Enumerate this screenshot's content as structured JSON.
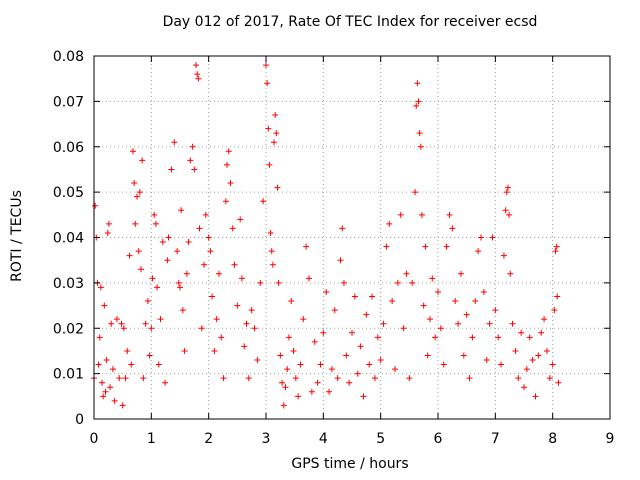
{
  "chart_data": {
    "type": "scatter",
    "title": "Day 012 of 2017, Rate Of TEC Index for receiver ecsd",
    "xlabel": "GPS time / hours",
    "ylabel": "ROTI / TECUs",
    "xlim": [
      0,
      9
    ],
    "ylim": [
      0,
      0.08
    ],
    "xticks": [
      "0",
      "1",
      "2",
      "3",
      "4",
      "5",
      "6",
      "7",
      "8",
      "9"
    ],
    "yticks": [
      "0",
      "0.01",
      "0.02",
      "0.03",
      "0.04",
      "0.05",
      "0.06",
      "0.07",
      "0.08"
    ],
    "grid": true,
    "marker": "plus",
    "color": "#ff0000",
    "series": [
      {
        "points": [
          [
            0.0,
            0.009
          ],
          [
            0.02,
            0.047
          ],
          [
            0.04,
            0.04
          ],
          [
            0.06,
            0.03
          ],
          [
            0.08,
            0.012
          ],
          [
            0.1,
            0.018
          ],
          [
            0.12,
            0.029
          ],
          [
            0.14,
            0.008
          ],
          [
            0.16,
            0.005
          ],
          [
            0.18,
            0.025
          ],
          [
            0.2,
            0.006
          ],
          [
            0.22,
            0.013
          ],
          [
            0.24,
            0.041
          ],
          [
            0.26,
            0.043
          ],
          [
            0.28,
            0.007
          ],
          [
            0.3,
            0.021
          ],
          [
            0.33,
            0.011
          ],
          [
            0.36,
            0.004
          ],
          [
            0.4,
            0.022
          ],
          [
            0.44,
            0.009
          ],
          [
            0.48,
            0.021
          ],
          [
            0.5,
            0.003
          ],
          [
            0.52,
            0.02
          ],
          [
            0.55,
            0.009
          ],
          [
            0.58,
            0.015
          ],
          [
            0.62,
            0.036
          ],
          [
            0.65,
            0.012
          ],
          [
            0.68,
            0.059
          ],
          [
            0.7,
            0.052
          ],
          [
            0.72,
            0.043
          ],
          [
            0.75,
            0.049
          ],
          [
            0.78,
            0.037
          ],
          [
            0.8,
            0.05
          ],
          [
            0.82,
            0.033
          ],
          [
            0.84,
            0.057
          ],
          [
            0.86,
            0.009
          ],
          [
            0.9,
            0.021
          ],
          [
            0.94,
            0.026
          ],
          [
            0.97,
            0.014
          ],
          [
            1.0,
            0.02
          ],
          [
            1.02,
            0.031
          ],
          [
            1.05,
            0.045
          ],
          [
            1.08,
            0.043
          ],
          [
            1.1,
            0.029
          ],
          [
            1.13,
            0.012
          ],
          [
            1.16,
            0.022
          ],
          [
            1.2,
            0.039
          ],
          [
            1.24,
            0.008
          ],
          [
            1.28,
            0.035
          ],
          [
            1.3,
            0.04
          ],
          [
            1.35,
            0.055
          ],
          [
            1.4,
            0.061
          ],
          [
            1.45,
            0.037
          ],
          [
            1.48,
            0.03
          ],
          [
            1.5,
            0.029
          ],
          [
            1.52,
            0.046
          ],
          [
            1.55,
            0.024
          ],
          [
            1.58,
            0.015
          ],
          [
            1.62,
            0.032
          ],
          [
            1.65,
            0.039
          ],
          [
            1.68,
            0.057
          ],
          [
            1.72,
            0.06
          ],
          [
            1.75,
            0.055
          ],
          [
            1.78,
            0.078
          ],
          [
            1.8,
            0.076
          ],
          [
            1.82,
            0.075
          ],
          [
            1.84,
            0.042
          ],
          [
            1.88,
            0.02
          ],
          [
            1.92,
            0.034
          ],
          [
            1.95,
            0.045
          ],
          [
            2.0,
            0.04
          ],
          [
            2.03,
            0.037
          ],
          [
            2.06,
            0.027
          ],
          [
            2.1,
            0.015
          ],
          [
            2.14,
            0.022
          ],
          [
            2.18,
            0.032
          ],
          [
            2.22,
            0.018
          ],
          [
            2.26,
            0.009
          ],
          [
            2.3,
            0.048
          ],
          [
            2.32,
            0.056
          ],
          [
            2.35,
            0.059
          ],
          [
            2.38,
            0.052
          ],
          [
            2.42,
            0.042
          ],
          [
            2.45,
            0.034
          ],
          [
            2.5,
            0.025
          ],
          [
            2.55,
            0.044
          ],
          [
            2.58,
            0.031
          ],
          [
            2.62,
            0.016
          ],
          [
            2.66,
            0.021
          ],
          [
            2.7,
            0.009
          ],
          [
            2.75,
            0.024
          ],
          [
            2.8,
            0.02
          ],
          [
            2.85,
            0.013
          ],
          [
            2.9,
            0.03
          ],
          [
            2.95,
            0.048
          ],
          [
            3.0,
            0.078
          ],
          [
            3.02,
            0.074
          ],
          [
            3.04,
            0.064
          ],
          [
            3.06,
            0.056
          ],
          [
            3.08,
            0.041
          ],
          [
            3.1,
            0.037
          ],
          [
            3.12,
            0.034
          ],
          [
            3.14,
            0.061
          ],
          [
            3.16,
            0.067
          ],
          [
            3.18,
            0.063
          ],
          [
            3.2,
            0.051
          ],
          [
            3.22,
            0.03
          ],
          [
            3.25,
            0.014
          ],
          [
            3.28,
            0.008
          ],
          [
            3.31,
            0.003
          ],
          [
            3.34,
            0.007
          ],
          [
            3.37,
            0.011
          ],
          [
            3.4,
            0.018
          ],
          [
            3.44,
            0.026
          ],
          [
            3.48,
            0.015
          ],
          [
            3.52,
            0.009
          ],
          [
            3.56,
            0.005
          ],
          [
            3.6,
            0.012
          ],
          [
            3.65,
            0.022
          ],
          [
            3.7,
            0.038
          ],
          [
            3.75,
            0.031
          ],
          [
            3.8,
            0.006
          ],
          [
            3.85,
            0.017
          ],
          [
            3.9,
            0.008
          ],
          [
            3.95,
            0.012
          ],
          [
            4.0,
            0.019
          ],
          [
            4.05,
            0.028
          ],
          [
            4.1,
            0.006
          ],
          [
            4.15,
            0.011
          ],
          [
            4.2,
            0.024
          ],
          [
            4.25,
            0.009
          ],
          [
            4.3,
            0.035
          ],
          [
            4.33,
            0.042
          ],
          [
            4.36,
            0.03
          ],
          [
            4.4,
            0.014
          ],
          [
            4.45,
            0.008
          ],
          [
            4.5,
            0.019
          ],
          [
            4.55,
            0.027
          ],
          [
            4.6,
            0.01
          ],
          [
            4.65,
            0.016
          ],
          [
            4.7,
            0.005
          ],
          [
            4.75,
            0.023
          ],
          [
            4.8,
            0.012
          ],
          [
            4.85,
            0.027
          ],
          [
            4.9,
            0.009
          ],
          [
            4.95,
            0.018
          ],
          [
            5.0,
            0.013
          ],
          [
            5.05,
            0.021
          ],
          [
            5.1,
            0.038
          ],
          [
            5.15,
            0.043
          ],
          [
            5.2,
            0.026
          ],
          [
            5.25,
            0.011
          ],
          [
            5.3,
            0.03
          ],
          [
            5.35,
            0.045
          ],
          [
            5.4,
            0.02
          ],
          [
            5.45,
            0.032
          ],
          [
            5.5,
            0.009
          ],
          [
            5.55,
            0.03
          ],
          [
            5.6,
            0.05
          ],
          [
            5.62,
            0.069
          ],
          [
            5.64,
            0.074
          ],
          [
            5.66,
            0.07
          ],
          [
            5.68,
            0.063
          ],
          [
            5.7,
            0.06
          ],
          [
            5.72,
            0.045
          ],
          [
            5.75,
            0.025
          ],
          [
            5.78,
            0.038
          ],
          [
            5.82,
            0.014
          ],
          [
            5.86,
            0.022
          ],
          [
            5.9,
            0.031
          ],
          [
            5.95,
            0.018
          ],
          [
            6.0,
            0.028
          ],
          [
            6.05,
            0.02
          ],
          [
            6.1,
            0.012
          ],
          [
            6.15,
            0.038
          ],
          [
            6.2,
            0.045
          ],
          [
            6.25,
            0.042
          ],
          [
            6.3,
            0.026
          ],
          [
            6.35,
            0.021
          ],
          [
            6.4,
            0.032
          ],
          [
            6.45,
            0.014
          ],
          [
            6.5,
            0.023
          ],
          [
            6.55,
            0.009
          ],
          [
            6.6,
            0.018
          ],
          [
            6.65,
            0.026
          ],
          [
            6.7,
            0.037
          ],
          [
            6.75,
            0.04
          ],
          [
            6.8,
            0.028
          ],
          [
            6.85,
            0.013
          ],
          [
            6.9,
            0.021
          ],
          [
            6.95,
            0.04
          ],
          [
            7.0,
            0.024
          ],
          [
            7.05,
            0.018
          ],
          [
            7.1,
            0.012
          ],
          [
            7.15,
            0.036
          ],
          [
            7.18,
            0.046
          ],
          [
            7.2,
            0.05
          ],
          [
            7.22,
            0.051
          ],
          [
            7.24,
            0.045
          ],
          [
            7.26,
            0.032
          ],
          [
            7.3,
            0.021
          ],
          [
            7.35,
            0.015
          ],
          [
            7.4,
            0.009
          ],
          [
            7.45,
            0.019
          ],
          [
            7.5,
            0.007
          ],
          [
            7.55,
            0.011
          ],
          [
            7.6,
            0.018
          ],
          [
            7.65,
            0.013
          ],
          [
            7.7,
            0.005
          ],
          [
            7.75,
            0.014
          ],
          [
            7.8,
            0.019
          ],
          [
            7.85,
            0.022
          ],
          [
            7.9,
            0.015
          ],
          [
            7.95,
            0.009
          ],
          [
            8.0,
            0.012
          ],
          [
            8.03,
            0.024
          ],
          [
            8.05,
            0.037
          ],
          [
            8.07,
            0.038
          ],
          [
            8.08,
            0.027
          ],
          [
            8.1,
            0.008
          ]
        ]
      }
    ]
  }
}
